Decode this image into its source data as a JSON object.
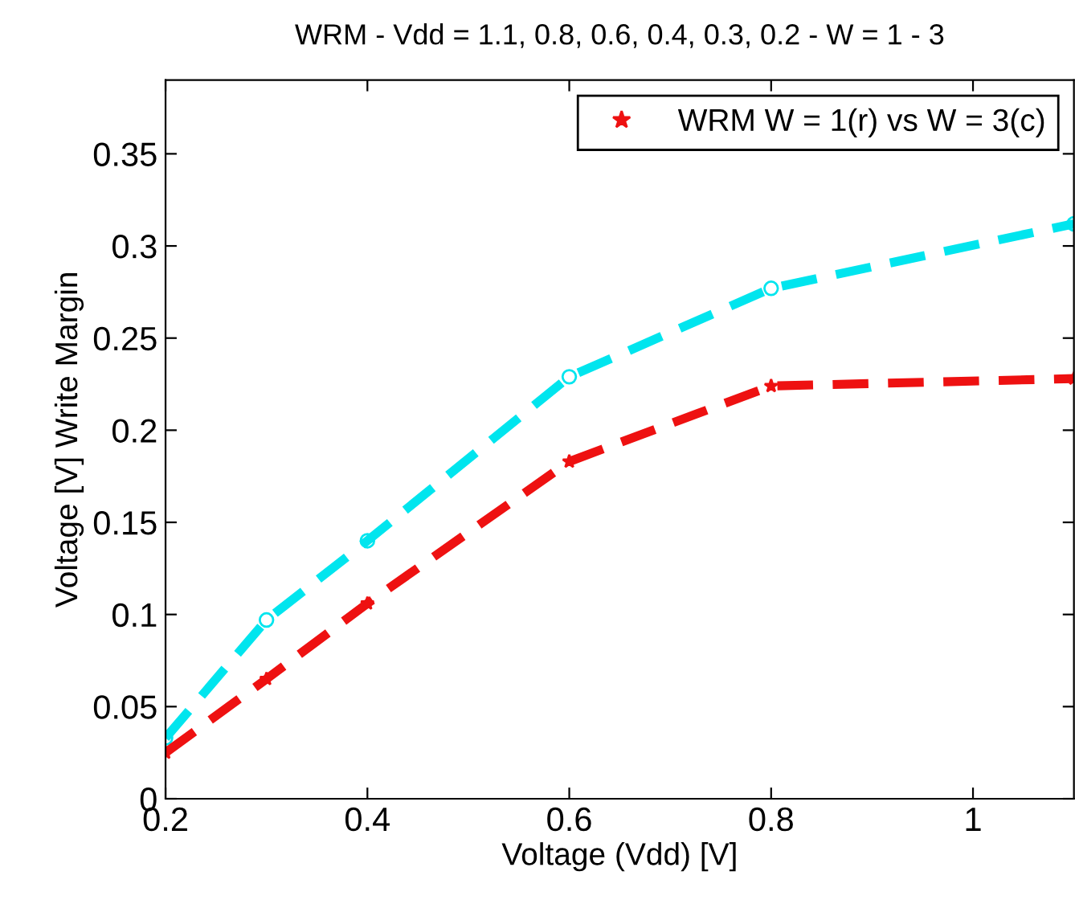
{
  "chart_data": {
    "type": "line",
    "title": "WRM - Vdd = 1.1, 0.8, 0.6, 0.4, 0.3, 0.2 - W = 1 - 3",
    "xlabel": "Voltage (Vdd) [V]",
    "ylabel": "Voltage [V] Write Margin",
    "xlim": [
      0.2,
      1.1
    ],
    "xticks": [
      0.2,
      0.4,
      0.6,
      0.8,
      1
    ],
    "ylim": [
      0,
      0.39
    ],
    "yticks": [
      0,
      0.05,
      0.1,
      0.15,
      0.2,
      0.25,
      0.3,
      0.35
    ],
    "grid": false,
    "legend": "top right",
    "line_style": "dashed",
    "series": [
      {
        "color": "#00e5ee",
        "marker": "circle",
        "x": [
          0.2,
          0.3,
          0.4,
          0.6,
          0.8,
          1.1
        ],
        "values": [
          0.033,
          0.097,
          0.14,
          0.229,
          0.277,
          0.312
        ]
      },
      {
        "name": "WRM W = 1(r) vs W = 3(c)",
        "color": "#ee1111",
        "marker": "star",
        "x": [
          0.2,
          0.3,
          0.4,
          0.6,
          0.8,
          1.1
        ],
        "values": [
          0.025,
          0.065,
          0.106,
          0.183,
          0.224,
          0.228
        ]
      }
    ]
  }
}
